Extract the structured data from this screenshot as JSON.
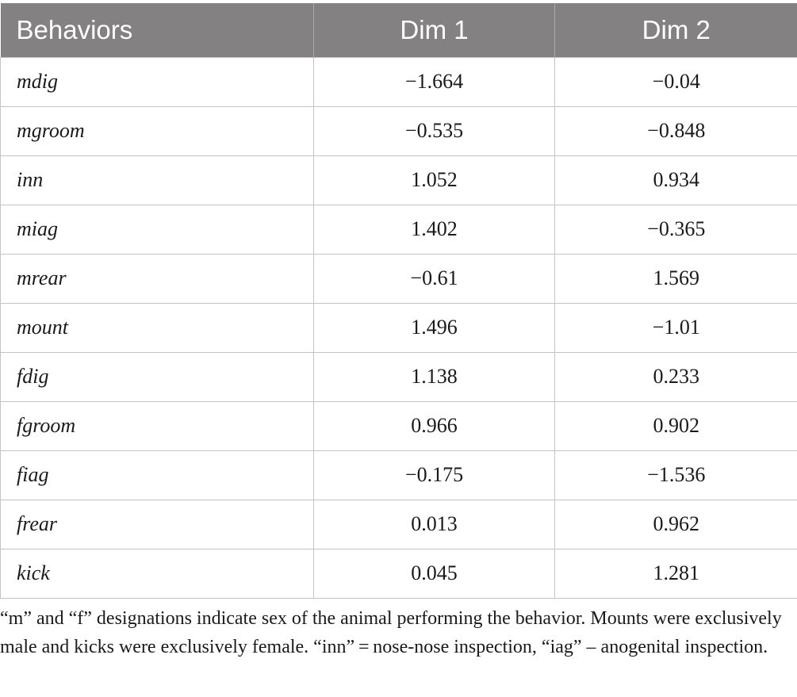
{
  "table": {
    "headers": [
      "Behaviors",
      "Dim 1",
      "Dim 2"
    ],
    "rows": [
      {
        "behavior": "mdig",
        "dim1": "−1.664",
        "dim2": "−0.04"
      },
      {
        "behavior": "mgroom",
        "dim1": "−0.535",
        "dim2": "−0.848"
      },
      {
        "behavior": "inn",
        "dim1": "1.052",
        "dim2": "0.934"
      },
      {
        "behavior": "miag",
        "dim1": "1.402",
        "dim2": "−0.365"
      },
      {
        "behavior": "mrear",
        "dim1": "−0.61",
        "dim2": "1.569"
      },
      {
        "behavior": "mount",
        "dim1": "1.496",
        "dim2": "−1.01"
      },
      {
        "behavior": "fdig",
        "dim1": "1.138",
        "dim2": "0.233"
      },
      {
        "behavior": "fgroom",
        "dim1": "0.966",
        "dim2": "0.902"
      },
      {
        "behavior": "fiag",
        "dim1": "−0.175",
        "dim2": "−1.536"
      },
      {
        "behavior": "frear",
        "dim1": "0.013",
        "dim2": "0.962"
      },
      {
        "behavior": "kick",
        "dim1": "0.045",
        "dim2": "1.281"
      }
    ]
  },
  "footnote": "“m” and “f” designations indicate sex of the animal performing the behavior. Mounts were exclusively male and kicks were exclusively female. “inn” = nose-nose inspection, “iag” – anogenital inspection.",
  "colors": {
    "header_bg": "#838181",
    "header_text": "#ffffff",
    "grid_lines": "#c4c4c4"
  }
}
